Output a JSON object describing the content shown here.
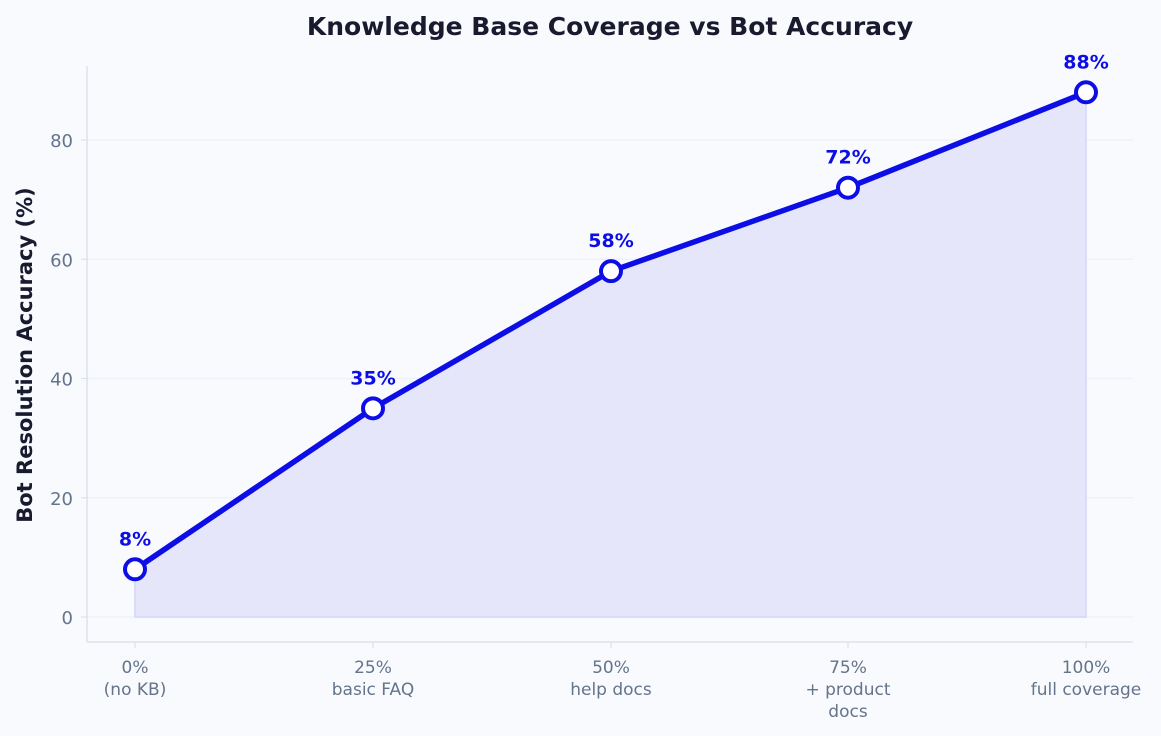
{
  "chart_data": {
    "type": "line",
    "title": "Knowledge Base Coverage vs Bot Accuracy",
    "xlabel": "",
    "ylabel": "Bot Resolution Accuracy (%)",
    "categories": [
      [
        "0%",
        "(no KB)"
      ],
      [
        "25%",
        "basic FAQ"
      ],
      [
        "50%",
        "help docs"
      ],
      [
        "75%",
        "+ product",
        "docs"
      ],
      [
        "100%",
        "full coverage"
      ]
    ],
    "series": [
      {
        "values": [
          8,
          35,
          58,
          72,
          88
        ],
        "labels": [
          "8%",
          "35%",
          "58%",
          "72%",
          "88%"
        ]
      }
    ],
    "ylim": [
      0,
      92
    ],
    "yticks": [
      0,
      20,
      40,
      60,
      80
    ],
    "grid": true,
    "area_fill": true,
    "colors": {
      "line": "#0d0de6",
      "marker_fill": "#ffffff",
      "area": "#e6e6fb",
      "label": "#0d0de6",
      "grid": "#eef1f7",
      "spine": "#dde1ea",
      "background": "#f8fafe"
    }
  }
}
